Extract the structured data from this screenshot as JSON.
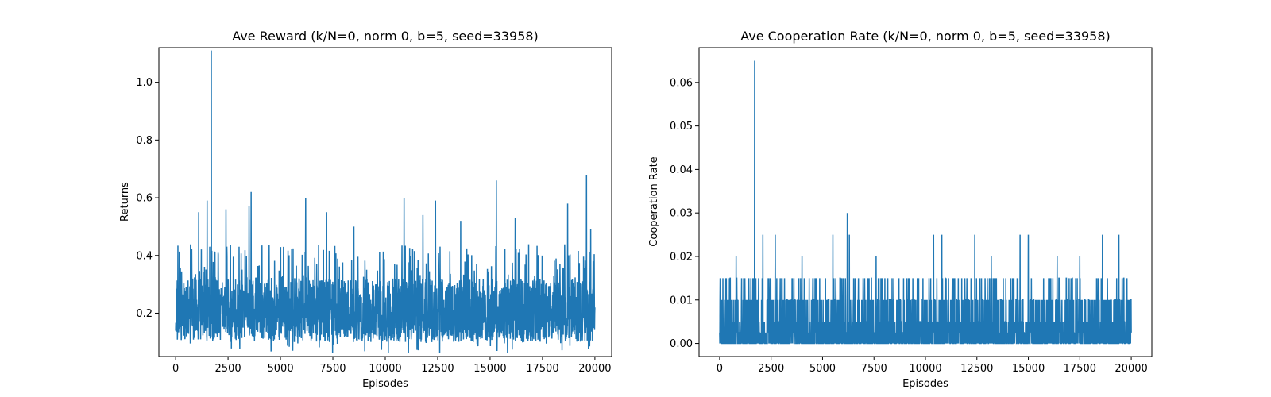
{
  "chart_data": [
    {
      "type": "line",
      "title": "Ave Reward (k/N=0, norm 0, b=5, seed=33958)",
      "xlabel": "Episodes",
      "ylabel": "Returns",
      "xlim": [
        -800,
        20800
      ],
      "ylim": [
        0.05,
        1.12
      ],
      "xticks": [
        0,
        2500,
        5000,
        7500,
        10000,
        12500,
        15000,
        17500,
        20000
      ],
      "yticks": [
        0.2,
        0.4,
        0.6,
        0.8,
        1.0
      ],
      "ytick_decimals": 1,
      "grid": false,
      "color": "#1f77b4",
      "series": [
        {
          "x_range": [
            0,
            20000
          ],
          "baseline": 0.2,
          "typical_low": 0.1,
          "typical_high": 0.32,
          "min": 0.06,
          "peaks": [
            [
              1700,
              1.11
            ],
            [
              19600,
              0.68
            ],
            [
              15300,
              0.66
            ],
            [
              3600,
              0.62
            ],
            [
              6200,
              0.6
            ],
            [
              1500,
              0.59
            ],
            [
              10900,
              0.6
            ],
            [
              12400,
              0.59
            ],
            [
              18700,
              0.58
            ],
            [
              3500,
              0.57
            ],
            [
              7200,
              0.55
            ],
            [
              1100,
              0.55
            ],
            [
              11800,
              0.54
            ],
            [
              13600,
              0.52
            ],
            [
              16200,
              0.53
            ],
            [
              19800,
              0.49
            ],
            [
              2400,
              0.56
            ],
            [
              8500,
              0.5
            ]
          ]
        }
      ]
    },
    {
      "type": "line",
      "title": "Ave Cooperation Rate (k/N=0, norm 0, b=5, seed=33958)",
      "xlabel": "Episodes",
      "ylabel": "Cooperation Rate",
      "xlim": [
        -1000,
        21000
      ],
      "ylim": [
        -0.003,
        0.068
      ],
      "xticks": [
        0,
        2500,
        5000,
        7500,
        10000,
        12500,
        15000,
        17500,
        20000
      ],
      "yticks": [
        0.0,
        0.01,
        0.02,
        0.03,
        0.04,
        0.05,
        0.06
      ],
      "ytick_decimals": 2,
      "grid": false,
      "color": "#1f77b4",
      "series": [
        {
          "x_range": [
            0,
            20000
          ],
          "dense_low": 0.0,
          "dense_high": 0.01,
          "common_high": 0.015,
          "peaks": [
            [
              1700,
              0.065
            ],
            [
              6200,
              0.03
            ],
            [
              6300,
              0.025
            ],
            [
              5500,
              0.025
            ],
            [
              2100,
              0.025
            ],
            [
              2700,
              0.025
            ],
            [
              10800,
              0.025
            ],
            [
              12400,
              0.025
            ],
            [
              14600,
              0.025
            ],
            [
              15000,
              0.025
            ],
            [
              18600,
              0.025
            ],
            [
              19400,
              0.025
            ],
            [
              10400,
              0.025
            ],
            [
              4000,
              0.02
            ],
            [
              7600,
              0.02
            ],
            [
              13200,
              0.02
            ],
            [
              16400,
              0.02
            ],
            [
              17500,
              0.02
            ],
            [
              800,
              0.02
            ]
          ]
        }
      ]
    }
  ]
}
